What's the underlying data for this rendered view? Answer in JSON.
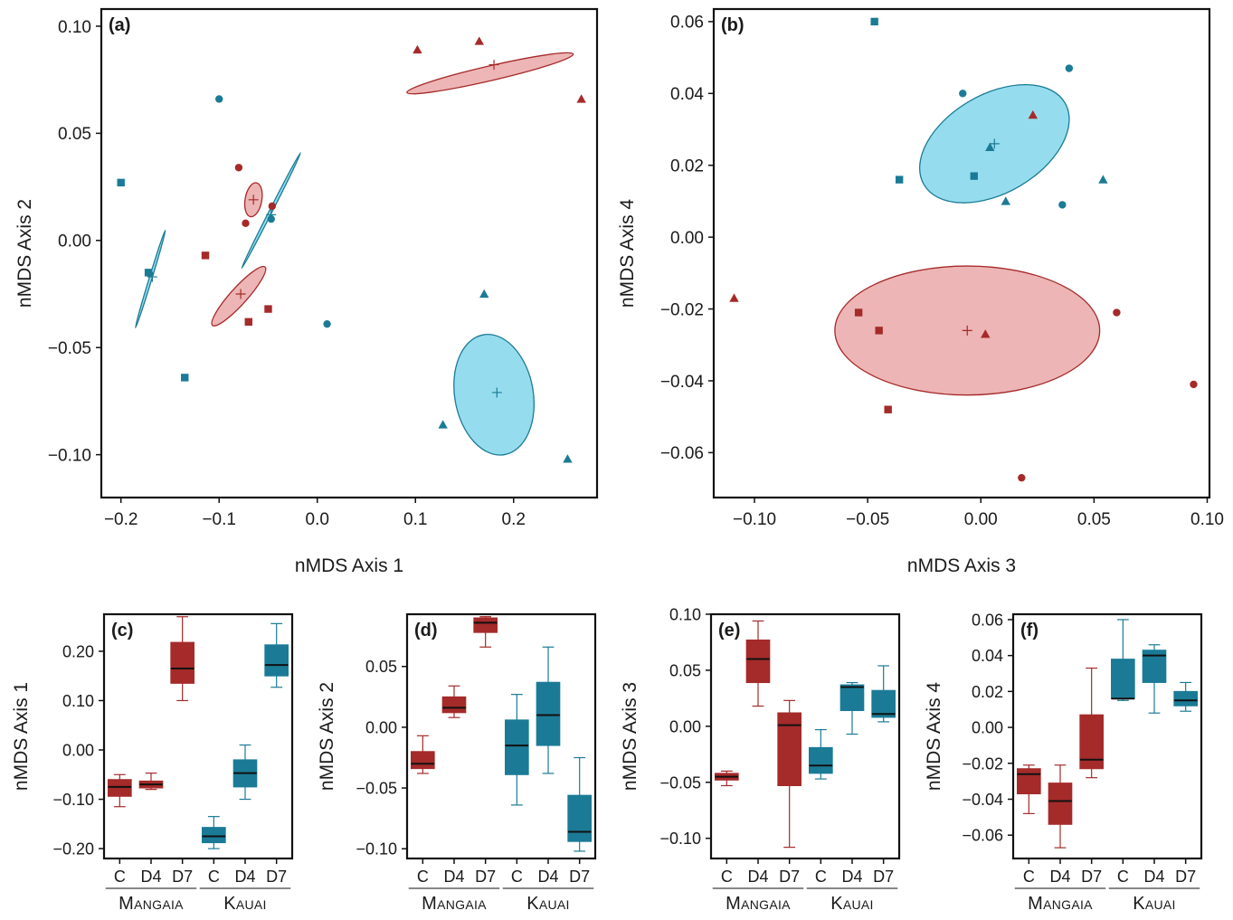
{
  "colors": {
    "mangaia": "#a52a2a",
    "mangaia_fill": "#e79c9c",
    "kauai": "#1b7b96",
    "kauai_fill": "#72d1e8",
    "axis": "#111111"
  },
  "chart_data": [
    {
      "id": "a",
      "type": "scatter",
      "panel_label": "(a)",
      "xlabel": "nMDS Axis 1",
      "ylabel": "nMDS Axis 2",
      "xlim": [
        -0.22,
        0.285
      ],
      "ylim": [
        -0.12,
        0.108
      ],
      "xticks": [
        -0.2,
        -0.1,
        0.0,
        0.1,
        0.2
      ],
      "xtick_labels": [
        "−0.2",
        "−0.1",
        "0.0",
        "0.1",
        "0.2"
      ],
      "yticks": [
        -0.1,
        -0.05,
        0.0,
        0.05,
        0.1
      ],
      "ytick_labels": [
        "−0.10",
        "−0.05",
        "0.00",
        "0.05",
        "0.10"
      ],
      "ellipses": [
        {
          "group": "mangaia",
          "cx": 0.176,
          "cy": 0.078,
          "rx": 0.087,
          "ry": 0.0075,
          "angle": -13
        },
        {
          "group": "mangaia",
          "cx": -0.065,
          "cy": 0.019,
          "rx": 0.0175,
          "ry": 0.0085,
          "angle": -80
        },
        {
          "group": "mangaia",
          "cx": -0.08,
          "cy": -0.026,
          "rx": 0.04,
          "ry": 0.0085,
          "angle": -48
        },
        {
          "group": "kauai",
          "cx": -0.047,
          "cy": 0.014,
          "rx": 0.066,
          "ry": 0.0015,
          "angle": -63
        },
        {
          "group": "kauai",
          "cx": -0.17,
          "cy": -0.018,
          "rx": 0.052,
          "ry": 0.0012,
          "angle": -73
        },
        {
          "group": "kauai",
          "cx": 0.18,
          "cy": -0.072,
          "rx": 0.04,
          "ry": 0.062,
          "angle": -10
        }
      ],
      "centroids": [
        {
          "group": "mangaia",
          "x": 0.18,
          "y": 0.082
        },
        {
          "group": "mangaia",
          "x": -0.065,
          "y": 0.019
        },
        {
          "group": "mangaia",
          "x": -0.078,
          "y": -0.025
        },
        {
          "group": "kauai",
          "x": -0.047,
          "y": 0.012
        },
        {
          "group": "kauai",
          "x": -0.168,
          "y": -0.017
        },
        {
          "group": "kauai",
          "x": 0.183,
          "y": -0.071
        }
      ],
      "points": [
        {
          "group": "mangaia",
          "shape": "triangle",
          "x": 0.165,
          "y": 0.093
        },
        {
          "group": "mangaia",
          "shape": "triangle",
          "x": 0.102,
          "y": 0.089
        },
        {
          "group": "mangaia",
          "shape": "triangle",
          "x": 0.269,
          "y": 0.066
        },
        {
          "group": "mangaia",
          "shape": "circle",
          "x": -0.08,
          "y": 0.034
        },
        {
          "group": "mangaia",
          "shape": "circle",
          "x": -0.046,
          "y": 0.016
        },
        {
          "group": "mangaia",
          "shape": "circle",
          "x": -0.073,
          "y": 0.008
        },
        {
          "group": "mangaia",
          "shape": "square",
          "x": -0.114,
          "y": -0.007
        },
        {
          "group": "mangaia",
          "shape": "square",
          "x": -0.05,
          "y": -0.032
        },
        {
          "group": "mangaia",
          "shape": "square",
          "x": -0.07,
          "y": -0.038
        },
        {
          "group": "kauai",
          "shape": "circle",
          "x": -0.1,
          "y": 0.066
        },
        {
          "group": "kauai",
          "shape": "circle",
          "x": -0.047,
          "y": 0.01
        },
        {
          "group": "kauai",
          "shape": "circle",
          "x": 0.01,
          "y": -0.039
        },
        {
          "group": "kauai",
          "shape": "square",
          "x": -0.2,
          "y": 0.027
        },
        {
          "group": "kauai",
          "shape": "square",
          "x": -0.172,
          "y": -0.015
        },
        {
          "group": "kauai",
          "shape": "square",
          "x": -0.135,
          "y": -0.064
        },
        {
          "group": "kauai",
          "shape": "triangle",
          "x": 0.17,
          "y": -0.025
        },
        {
          "group": "kauai",
          "shape": "triangle",
          "x": 0.128,
          "y": -0.086
        },
        {
          "group": "kauai",
          "shape": "triangle",
          "x": 0.255,
          "y": -0.102
        }
      ]
    },
    {
      "id": "b",
      "type": "scatter",
      "panel_label": "(b)",
      "xlabel": "nMDS Axis 3",
      "ylabel": "nMDS Axis 4",
      "xlim": [
        -0.118,
        0.101
      ],
      "ylim": [
        -0.0725,
        0.0635
      ],
      "xticks": [
        -0.1,
        -0.05,
        0.0,
        0.05,
        0.1
      ],
      "xtick_labels": [
        "−0.10",
        "−0.05",
        "0.00",
        "0.05",
        "0.10"
      ],
      "yticks": [
        -0.06,
        -0.04,
        -0.02,
        0.0,
        0.02,
        0.04,
        0.06
      ],
      "ytick_labels": [
        "−0.06",
        "−0.04",
        "−0.02",
        "0.00",
        "0.02",
        "0.04",
        "0.06"
      ],
      "ellipses": [
        {
          "group": "kauai",
          "cx": 0.006,
          "cy": 0.026,
          "rx": 0.036,
          "ry": 0.0218,
          "angle": -30
        },
        {
          "group": "mangaia",
          "cx": -0.006,
          "cy": -0.026,
          "rx": 0.0585,
          "ry": 0.0285,
          "angle": 0
        }
      ],
      "centroids": [
        {
          "group": "kauai",
          "x": 0.006,
          "y": 0.026
        },
        {
          "group": "mangaia",
          "x": -0.006,
          "y": -0.026
        }
      ],
      "points": [
        {
          "group": "kauai",
          "shape": "square",
          "x": -0.047,
          "y": 0.06
        },
        {
          "group": "kauai",
          "shape": "circle",
          "x": 0.039,
          "y": 0.047
        },
        {
          "group": "kauai",
          "shape": "circle",
          "x": -0.008,
          "y": 0.04
        },
        {
          "group": "kauai",
          "shape": "triangle",
          "x": 0.004,
          "y": 0.025
        },
        {
          "group": "kauai",
          "shape": "square",
          "x": -0.036,
          "y": 0.016
        },
        {
          "group": "kauai",
          "shape": "square",
          "x": -0.003,
          "y": 0.017
        },
        {
          "group": "kauai",
          "shape": "triangle",
          "x": 0.054,
          "y": 0.016
        },
        {
          "group": "kauai",
          "shape": "triangle",
          "x": 0.011,
          "y": 0.01
        },
        {
          "group": "kauai",
          "shape": "circle",
          "x": 0.036,
          "y": 0.009
        },
        {
          "group": "mangaia",
          "shape": "triangle",
          "x": 0.023,
          "y": 0.034
        },
        {
          "group": "mangaia",
          "shape": "triangle",
          "x": -0.109,
          "y": -0.017
        },
        {
          "group": "mangaia",
          "shape": "square",
          "x": -0.054,
          "y": -0.021
        },
        {
          "group": "mangaia",
          "shape": "circle",
          "x": 0.06,
          "y": -0.021
        },
        {
          "group": "mangaia",
          "shape": "square",
          "x": -0.045,
          "y": -0.026
        },
        {
          "group": "mangaia",
          "shape": "triangle",
          "x": 0.002,
          "y": -0.027
        },
        {
          "group": "mangaia",
          "shape": "circle",
          "x": 0.094,
          "y": -0.041
        },
        {
          "group": "mangaia",
          "shape": "square",
          "x": -0.041,
          "y": -0.048
        },
        {
          "group": "mangaia",
          "shape": "circle",
          "x": 0.018,
          "y": -0.067
        }
      ]
    },
    {
      "id": "c",
      "type": "box",
      "panel_label": "(c)",
      "ylabel": "nMDS Axis 1",
      "ylim": [
        -0.22,
        0.275
      ],
      "yticks": [
        -0.2,
        -0.1,
        0.0,
        0.1,
        0.2
      ],
      "ytick_labels": [
        "−0.20",
        "−0.10",
        "0.00",
        "0.10",
        "0.20"
      ],
      "categories": [
        "C",
        "D4",
        "D7",
        "C",
        "D4",
        "D7"
      ],
      "groups": [
        {
          "name": "Mangaia",
          "from": 0,
          "to": 2,
          "color": "mangaia"
        },
        {
          "name": "Kauai",
          "from": 3,
          "to": 5,
          "color": "kauai"
        }
      ],
      "boxes": [
        {
          "min": -0.115,
          "q1": -0.094,
          "median": -0.075,
          "q3": -0.06,
          "max": -0.05
        },
        {
          "min": -0.08,
          "q1": -0.077,
          "median": -0.07,
          "q3": -0.063,
          "max": -0.047
        },
        {
          "min": 0.1,
          "q1": 0.135,
          "median": 0.165,
          "q3": 0.218,
          "max": 0.27
        },
        {
          "min": -0.2,
          "q1": -0.188,
          "median": -0.175,
          "q3": -0.157,
          "max": -0.135
        },
        {
          "min": -0.1,
          "q1": -0.075,
          "median": -0.047,
          "q3": -0.02,
          "max": 0.01
        },
        {
          "min": 0.127,
          "q1": 0.15,
          "median": 0.172,
          "q3": 0.213,
          "max": 0.256
        }
      ]
    },
    {
      "id": "d",
      "type": "box",
      "panel_label": "(d)",
      "ylabel": "nMDS Axis 2",
      "ylim": [
        -0.108,
        0.093
      ],
      "yticks": [
        -0.1,
        -0.05,
        0.0,
        0.05
      ],
      "ytick_labels": [
        "−0.10",
        "−0.05",
        "0.00",
        "0.05"
      ],
      "categories": [
        "C",
        "D4",
        "D7",
        "C",
        "D4",
        "D7"
      ],
      "groups": [
        {
          "name": "Mangaia",
          "from": 0,
          "to": 2,
          "color": "mangaia"
        },
        {
          "name": "Kauai",
          "from": 3,
          "to": 5,
          "color": "kauai"
        }
      ],
      "boxes": [
        {
          "min": -0.038,
          "q1": -0.034,
          "median": -0.03,
          "q3": -0.02,
          "max": -0.007
        },
        {
          "min": 0.008,
          "q1": 0.012,
          "median": 0.016,
          "q3": 0.025,
          "max": 0.034
        },
        {
          "min": 0.066,
          "q1": 0.078,
          "median": 0.086,
          "q3": 0.09,
          "max": 0.091
        },
        {
          "min": -0.064,
          "q1": -0.039,
          "median": -0.015,
          "q3": 0.006,
          "max": 0.027
        },
        {
          "min": -0.038,
          "q1": -0.015,
          "median": 0.01,
          "q3": 0.037,
          "max": 0.066
        },
        {
          "min": -0.102,
          "q1": -0.094,
          "median": -0.086,
          "q3": -0.056,
          "max": -0.025
        }
      ]
    },
    {
      "id": "e",
      "type": "box",
      "panel_label": "(e)",
      "ylabel": "nMDS Axis 3",
      "ylim": [
        -0.118,
        0.1
      ],
      "yticks": [
        -0.1,
        -0.05,
        0.0,
        0.05,
        0.1
      ],
      "ytick_labels": [
        "−0.10",
        "−0.05",
        "0.00",
        "0.05",
        "0.10"
      ],
      "categories": [
        "C",
        "D4",
        "D7",
        "C",
        "D4",
        "D7"
      ],
      "groups": [
        {
          "name": "Mangaia",
          "from": 0,
          "to": 2,
          "color": "mangaia"
        },
        {
          "name": "Kauai",
          "from": 3,
          "to": 5,
          "color": "kauai"
        }
      ],
      "boxes": [
        {
          "min": -0.053,
          "q1": -0.048,
          "median": -0.045,
          "q3": -0.042,
          "max": -0.04
        },
        {
          "min": 0.018,
          "q1": 0.039,
          "median": 0.06,
          "q3": 0.077,
          "max": 0.094
        },
        {
          "min": -0.108,
          "q1": -0.053,
          "median": 0.001,
          "q3": 0.012,
          "max": 0.023
        },
        {
          "min": -0.047,
          "q1": -0.042,
          "median": -0.035,
          "q3": -0.019,
          "max": -0.003
        },
        {
          "min": -0.007,
          "q1": 0.014,
          "median": 0.035,
          "q3": 0.037,
          "max": 0.039
        },
        {
          "min": 0.004,
          "q1": 0.008,
          "median": 0.011,
          "q3": 0.032,
          "max": 0.054
        }
      ]
    },
    {
      "id": "f",
      "type": "box",
      "panel_label": "(f)",
      "ylabel": "nMDS Axis 4",
      "ylim": [
        -0.073,
        0.063
      ],
      "yticks": [
        -0.06,
        -0.04,
        -0.02,
        0.0,
        0.02,
        0.04,
        0.06
      ],
      "ytick_labels": [
        "−0.06",
        "−0.04",
        "−0.02",
        "0.00",
        "0.02",
        "0.04",
        "0.06"
      ],
      "categories": [
        "C",
        "D4",
        "D7",
        "C",
        "D4",
        "D7"
      ],
      "groups": [
        {
          "name": "Mangaia",
          "from": 0,
          "to": 2,
          "color": "mangaia"
        },
        {
          "name": "Kauai",
          "from": 3,
          "to": 5,
          "color": "kauai"
        }
      ],
      "boxes": [
        {
          "min": -0.048,
          "q1": -0.037,
          "median": -0.026,
          "q3": -0.023,
          "max": -0.021
        },
        {
          "min": -0.067,
          "q1": -0.054,
          "median": -0.041,
          "q3": -0.031,
          "max": -0.021
        },
        {
          "min": -0.028,
          "q1": -0.023,
          "median": -0.018,
          "q3": 0.007,
          "max": 0.033
        },
        {
          "min": 0.015,
          "q1": 0.016,
          "median": 0.016,
          "q3": 0.038,
          "max": 0.06
        },
        {
          "min": 0.008,
          "q1": 0.025,
          "median": 0.04,
          "q3": 0.043,
          "max": 0.046
        },
        {
          "min": 0.009,
          "q1": 0.012,
          "median": 0.015,
          "q3": 0.02,
          "max": 0.025
        }
      ]
    }
  ]
}
